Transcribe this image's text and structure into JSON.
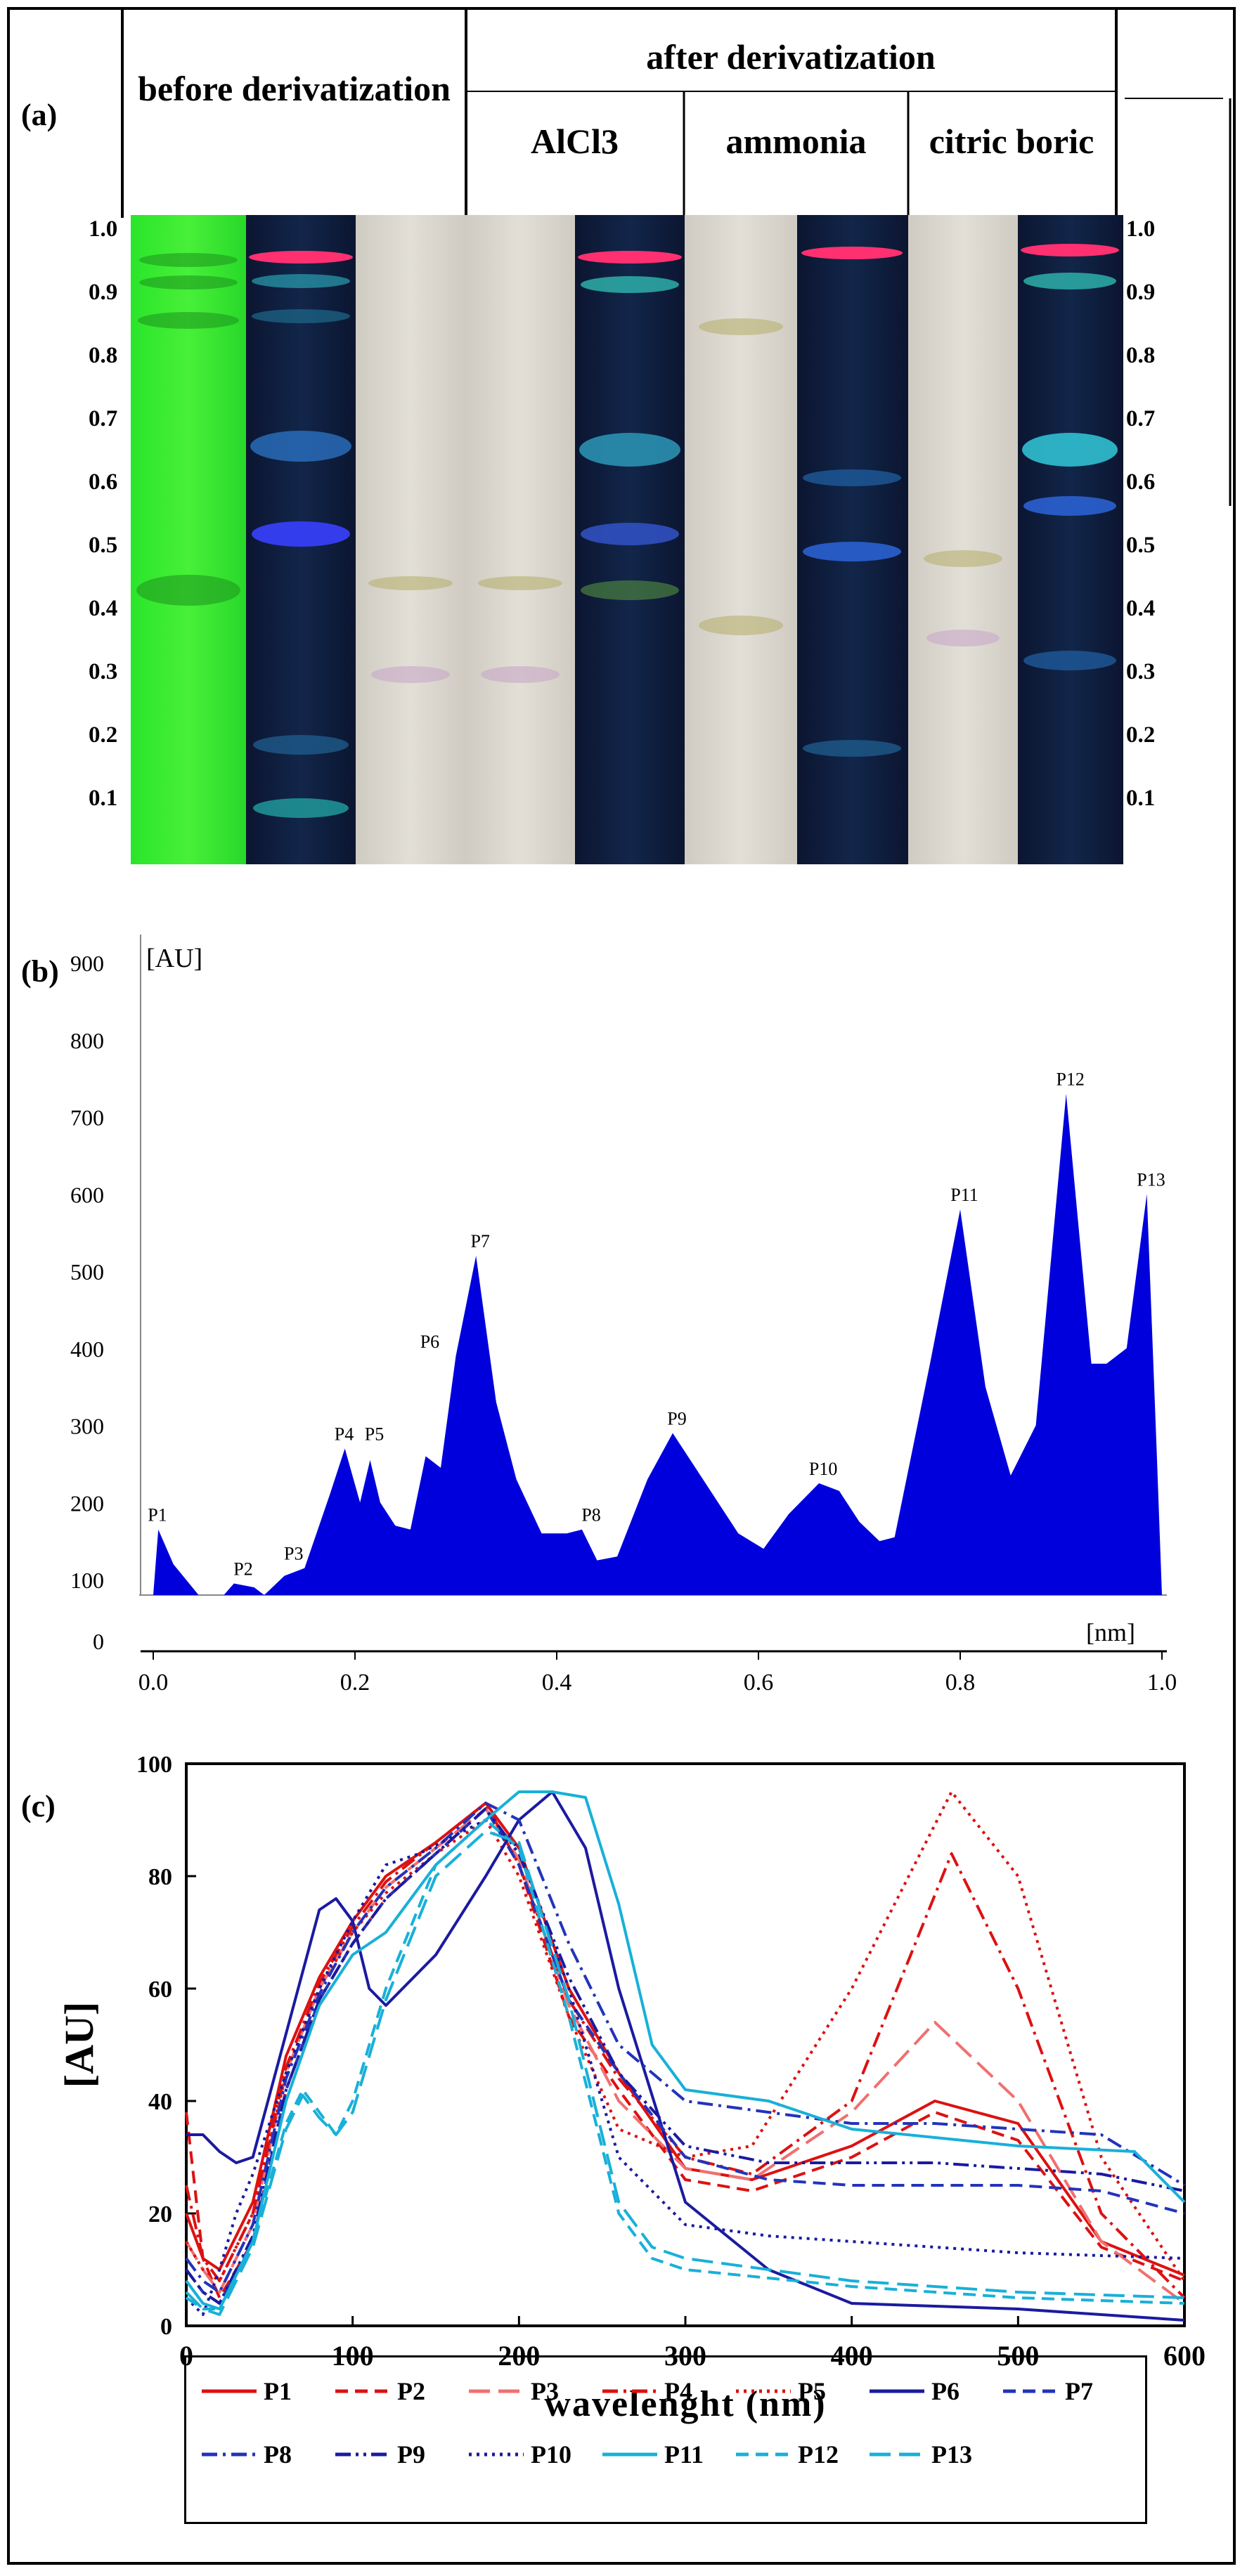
{
  "panel_labels": [
    "(a)",
    "(b)",
    "(c)"
  ],
  "panel_a": {
    "headers": {
      "before": "before derivatization",
      "after": "after derivatization",
      "alcl3": "AlCl3",
      "ammonia": "ammonia",
      "citric_boric": "citric boric"
    },
    "rf_ticks": [
      "1.0",
      "0.9",
      "0.8",
      "0.7",
      "0.6",
      "0.5",
      "0.4",
      "0.3",
      "0.2",
      "0.1"
    ],
    "colors": {
      "green_lane": "#35e52e",
      "dark_lane": "#0a1a33",
      "white_lane": "#dcdad2"
    }
  },
  "chart_data": [
    {
      "id": "b",
      "type": "area",
      "ylabel": "[AU]",
      "xlabel": "[nm]",
      "xlim": [
        0.0,
        1.0
      ],
      "ylim": [
        0,
        900
      ],
      "x_ticks": [
        "0.0",
        "0.2",
        "0.4",
        "0.6",
        "0.8",
        "1.0"
      ],
      "y_ticks": [
        "0",
        "100",
        "200",
        "300",
        "400",
        "500",
        "600",
        "700",
        "800",
        "900"
      ],
      "color": "#0000dd",
      "baseline": 80,
      "peaks": [
        {
          "label": "P1",
          "x": 0.0
        },
        {
          "label": "P2",
          "x": 0.085
        },
        {
          "label": "P3",
          "x": 0.135
        },
        {
          "label": "P4",
          "x": 0.185
        },
        {
          "label": "P5",
          "x": 0.215
        },
        {
          "label": "P6",
          "x": 0.27
        },
        {
          "label": "P7",
          "x": 0.32
        },
        {
          "label": "P8",
          "x": 0.43
        },
        {
          "label": "P9",
          "x": 0.515
        },
        {
          "label": "P10",
          "x": 0.66
        },
        {
          "label": "P11",
          "x": 0.8
        },
        {
          "label": "P12",
          "x": 0.905
        },
        {
          "label": "P13",
          "x": 0.985
        }
      ],
      "profile": [
        [
          0.0,
          80
        ],
        [
          0.005,
          165
        ],
        [
          0.02,
          120
        ],
        [
          0.045,
          80
        ],
        [
          0.07,
          80
        ],
        [
          0.08,
          95
        ],
        [
          0.1,
          90
        ],
        [
          0.11,
          80
        ],
        [
          0.13,
          105
        ],
        [
          0.15,
          115
        ],
        [
          0.175,
          210
        ],
        [
          0.19,
          270
        ],
        [
          0.205,
          200
        ],
        [
          0.215,
          255
        ],
        [
          0.225,
          200
        ],
        [
          0.24,
          170
        ],
        [
          0.255,
          165
        ],
        [
          0.27,
          260
        ],
        [
          0.285,
          245
        ],
        [
          0.3,
          390
        ],
        [
          0.32,
          520
        ],
        [
          0.34,
          330
        ],
        [
          0.36,
          230
        ],
        [
          0.385,
          160
        ],
        [
          0.41,
          160
        ],
        [
          0.425,
          165
        ],
        [
          0.44,
          125
        ],
        [
          0.46,
          130
        ],
        [
          0.49,
          230
        ],
        [
          0.515,
          290
        ],
        [
          0.545,
          230
        ],
        [
          0.58,
          160
        ],
        [
          0.605,
          140
        ],
        [
          0.63,
          185
        ],
        [
          0.66,
          225
        ],
        [
          0.68,
          215
        ],
        [
          0.7,
          175
        ],
        [
          0.72,
          150
        ],
        [
          0.735,
          155
        ],
        [
          0.77,
          380
        ],
        [
          0.8,
          580
        ],
        [
          0.825,
          350
        ],
        [
          0.85,
          235
        ],
        [
          0.875,
          300
        ],
        [
          0.905,
          730
        ],
        [
          0.93,
          380
        ],
        [
          0.945,
          380
        ],
        [
          0.965,
          400
        ],
        [
          0.985,
          600
        ],
        [
          0.995,
          260
        ],
        [
          1.0,
          80
        ]
      ]
    },
    {
      "id": "c",
      "type": "line",
      "ylabel": "[AU]",
      "xlabel": "wavelenght (nm)",
      "xlim": [
        0,
        600
      ],
      "ylim": [
        0,
        100
      ],
      "x_ticks": [
        "0",
        "100",
        "200",
        "300",
        "400",
        "500",
        "600"
      ],
      "y_ticks": [
        "0",
        "20",
        "40",
        "60",
        "80",
        "100"
      ],
      "series": [
        {
          "name": "P1",
          "color": "#dd1111",
          "dash": "solid",
          "x": [
            0,
            10,
            20,
            40,
            60,
            80,
            100,
            120,
            150,
            180,
            200,
            230,
            260,
            300,
            340,
            400,
            450,
            500,
            550,
            600
          ],
          "y": [
            20,
            12,
            10,
            22,
            48,
            62,
            72,
            80,
            86,
            93,
            85,
            60,
            45,
            28,
            26,
            32,
            40,
            36,
            15,
            9
          ]
        },
        {
          "name": "P2",
          "color": "#dd1111",
          "dash": "dash",
          "x": [
            0,
            10,
            20,
            40,
            60,
            80,
            100,
            120,
            150,
            180,
            200,
            230,
            260,
            300,
            340,
            400,
            450,
            500,
            550,
            600
          ],
          "y": [
            38,
            12,
            5,
            15,
            42,
            58,
            68,
            76,
            84,
            92,
            82,
            55,
            42,
            26,
            24,
            30,
            38,
            33,
            14,
            8
          ]
        },
        {
          "name": "P3",
          "color": "#f07070",
          "dash": "longdash",
          "x": [
            0,
            10,
            20,
            40,
            60,
            80,
            100,
            120,
            150,
            180,
            200,
            230,
            260,
            300,
            340,
            400,
            450,
            500,
            550,
            600
          ],
          "y": [
            15,
            10,
            6,
            18,
            45,
            60,
            70,
            78,
            85,
            92,
            83,
            57,
            40,
            28,
            26,
            38,
            54,
            40,
            15,
            4
          ]
        },
        {
          "name": "P4",
          "color": "#dd1111",
          "dash": "dashdot",
          "x": [
            0,
            10,
            20,
            40,
            60,
            80,
            100,
            120,
            150,
            180,
            200,
            230,
            260,
            300,
            340,
            400,
            460,
            500,
            550,
            600
          ],
          "y": [
            25,
            12,
            8,
            20,
            46,
            61,
            71,
            79,
            86,
            93,
            82,
            58,
            44,
            30,
            27,
            40,
            84,
            60,
            20,
            5
          ]
        },
        {
          "name": "P5",
          "color": "#dd1111",
          "dash": "dot",
          "x": [
            0,
            10,
            20,
            40,
            60,
            80,
            100,
            120,
            150,
            180,
            200,
            230,
            260,
            300,
            340,
            400,
            460,
            500,
            550,
            600
          ],
          "y": [
            15,
            10,
            8,
            20,
            45,
            60,
            70,
            77,
            84,
            90,
            80,
            55,
            35,
            30,
            32,
            60,
            95,
            80,
            30,
            8
          ]
        },
        {
          "name": "P6",
          "color": "#1a1aa0",
          "dash": "solid",
          "x": [
            0,
            10,
            20,
            30,
            40,
            60,
            80,
            90,
            100,
            110,
            120,
            150,
            180,
            200,
            220,
            240,
            260,
            300,
            350,
            400,
            500,
            600
          ],
          "y": [
            34,
            34,
            31,
            29,
            30,
            52,
            74,
            76,
            72,
            60,
            57,
            66,
            80,
            90,
            95,
            85,
            60,
            22,
            10,
            4,
            3,
            1
          ]
        },
        {
          "name": "P7",
          "color": "#2233bb",
          "dash": "dash",
          "x": [
            0,
            10,
            20,
            40,
            60,
            80,
            100,
            120,
            150,
            180,
            200,
            230,
            260,
            300,
            350,
            400,
            450,
            500,
            550,
            600
          ],
          "y": [
            10,
            6,
            4,
            15,
            42,
            58,
            68,
            76,
            84,
            92,
            82,
            58,
            45,
            30,
            26,
            25,
            25,
            25,
            24,
            20
          ]
        },
        {
          "name": "P8",
          "color": "#2233bb",
          "dash": "dashdot",
          "x": [
            0,
            10,
            20,
            40,
            60,
            80,
            100,
            120,
            150,
            180,
            200,
            230,
            260,
            300,
            350,
            400,
            450,
            500,
            550,
            600
          ],
          "y": [
            12,
            8,
            6,
            18,
            44,
            59,
            70,
            78,
            85,
            93,
            90,
            68,
            50,
            40,
            38,
            36,
            36,
            35,
            34,
            25
          ]
        },
        {
          "name": "P9",
          "color": "#1a1aa0",
          "dash": "dashdotdot",
          "x": [
            0,
            10,
            20,
            40,
            60,
            80,
            100,
            120,
            150,
            180,
            200,
            230,
            260,
            300,
            350,
            400,
            450,
            500,
            550,
            600
          ],
          "y": [
            10,
            6,
            4,
            16,
            42,
            58,
            68,
            76,
            84,
            92,
            84,
            62,
            45,
            32,
            29,
            29,
            29,
            28,
            27,
            24
          ]
        },
        {
          "name": "P10",
          "color": "#1a1aa0",
          "dash": "dot",
          "x": [
            0,
            10,
            20,
            30,
            40,
            60,
            80,
            100,
            120,
            140,
            160,
            180,
            200,
            230,
            260,
            300,
            350,
            400,
            500,
            600
          ],
          "y": [
            5,
            2,
            10,
            20,
            27,
            45,
            60,
            72,
            82,
            84,
            87,
            90,
            85,
            60,
            30,
            18,
            16,
            15,
            13,
            12
          ]
        },
        {
          "name": "P11",
          "color": "#18b0d8",
          "dash": "solid",
          "x": [
            0,
            10,
            20,
            40,
            60,
            80,
            100,
            120,
            150,
            180,
            200,
            220,
            240,
            260,
            280,
            300,
            350,
            400,
            500,
            570,
            600
          ],
          "y": [
            8,
            4,
            3,
            15,
            40,
            57,
            66,
            70,
            82,
            90,
            95,
            95,
            94,
            75,
            50,
            42,
            40,
            35,
            32,
            31,
            22
          ]
        },
        {
          "name": "P12",
          "color": "#18b0d8",
          "dash": "dash",
          "x": [
            0,
            10,
            20,
            40,
            60,
            70,
            80,
            90,
            100,
            120,
            150,
            180,
            200,
            230,
            260,
            280,
            300,
            400,
            500,
            600
          ],
          "y": [
            5,
            3,
            3,
            15,
            36,
            42,
            38,
            34,
            40,
            60,
            82,
            90,
            85,
            55,
            20,
            12,
            10,
            7,
            5,
            4
          ]
        },
        {
          "name": "P13",
          "color": "#18b0d8",
          "dash": "longdash",
          "x": [
            0,
            10,
            20,
            40,
            60,
            70,
            80,
            90,
            100,
            120,
            150,
            180,
            200,
            230,
            260,
            280,
            300,
            400,
            500,
            600
          ],
          "y": [
            6,
            3,
            2,
            14,
            35,
            41,
            37,
            34,
            38,
            58,
            80,
            88,
            86,
            58,
            22,
            14,
            12,
            8,
            6,
            5
          ]
        }
      ]
    }
  ]
}
